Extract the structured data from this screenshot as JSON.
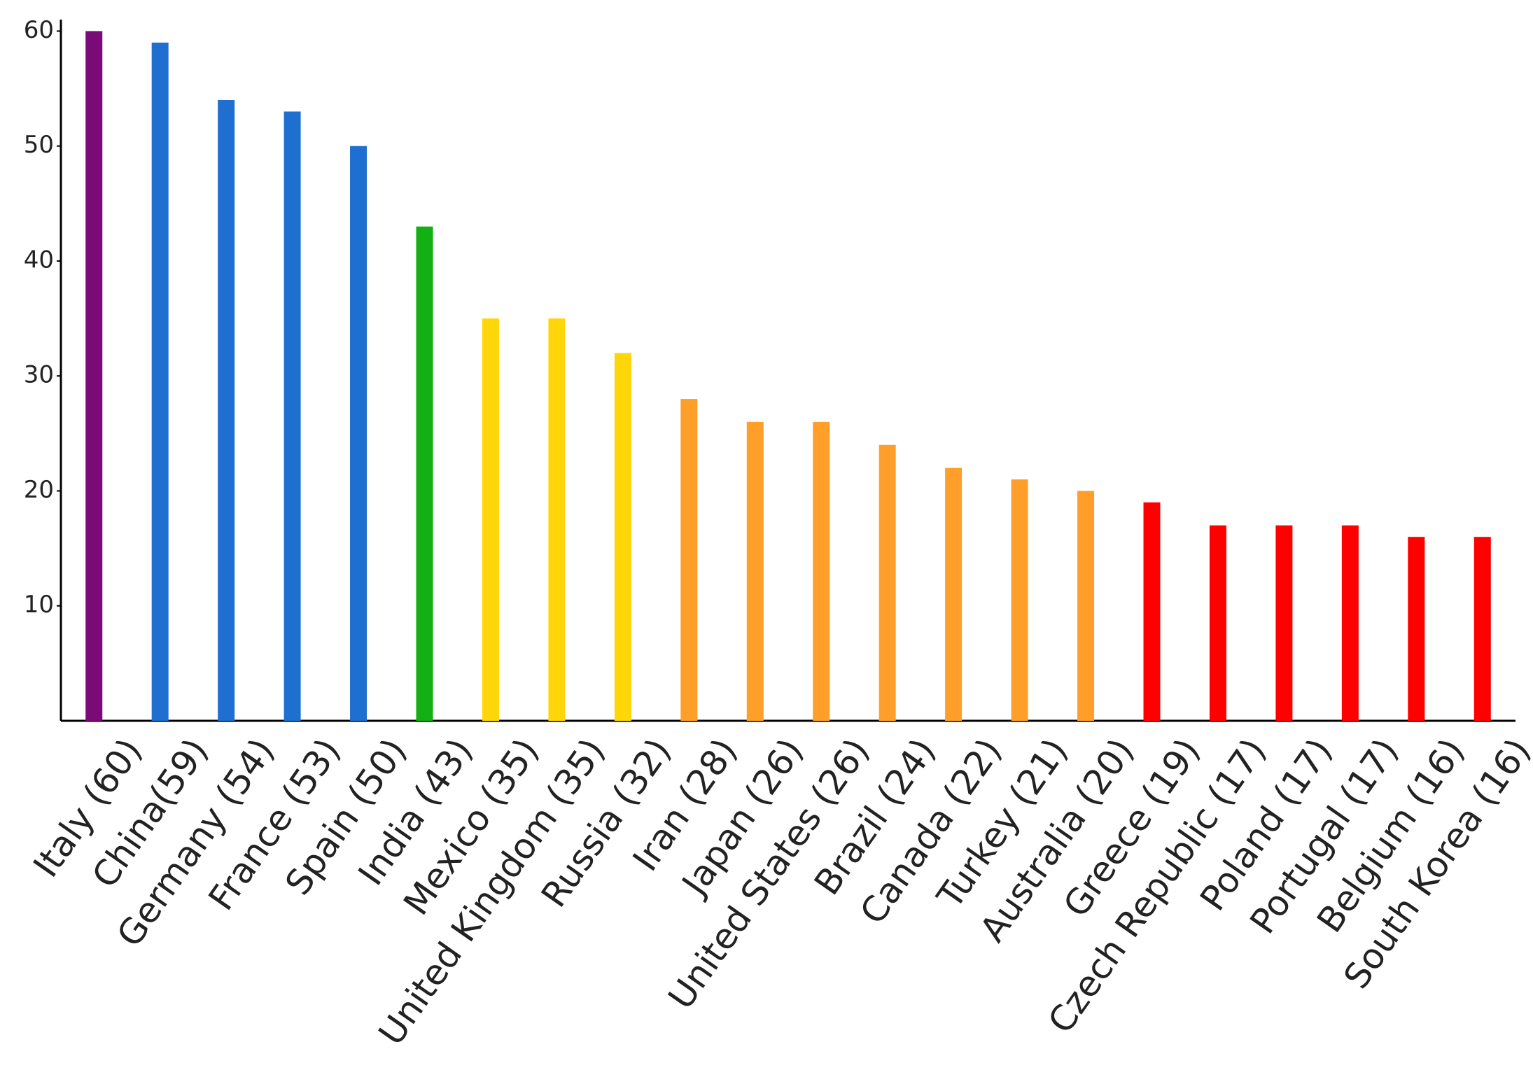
{
  "chart_data": {
    "type": "bar",
    "categories": [
      "Italy (60)",
      "China(59)",
      "Germany (54)",
      "France (53)",
      "Spain (50)",
      "India (43)",
      "Mexico (35)",
      "United Kingdom (35)",
      "Russia (32)",
      "Iran (28)",
      "Japan (26)",
      "United States (26)",
      "Brazil (24)",
      "Canada (22)",
      "Turkey (21)",
      "Australia (20)",
      "Greece (19)",
      "Czech Republic (17)",
      "Poland (17)",
      "Portugal (17)",
      "Belgium (16)",
      "South Korea (16)"
    ],
    "values": [
      60,
      59,
      54,
      53,
      50,
      43,
      35,
      35,
      32,
      28,
      26,
      26,
      24,
      22,
      21,
      20,
      19,
      17,
      17,
      17,
      16,
      16
    ],
    "colors": [
      "#7a0a78",
      "#1f6fd0",
      "#1f6fd0",
      "#1f6fd0",
      "#1f6fd0",
      "#12b012",
      "#ffd60a",
      "#ffd60a",
      "#ffd60a",
      "#ff9f2a",
      "#ff9f2a",
      "#ff9f2a",
      "#ff9f2a",
      "#ff9f2a",
      "#ff9f2a",
      "#ff9f2a",
      "#ff0000",
      "#ff0000",
      "#ff0000",
      "#ff0000",
      "#ff0000",
      "#ff0000"
    ],
    "ylim": [
      0,
      61
    ],
    "yticks": [
      10,
      20,
      30,
      40,
      50,
      60
    ],
    "grid": false
  }
}
